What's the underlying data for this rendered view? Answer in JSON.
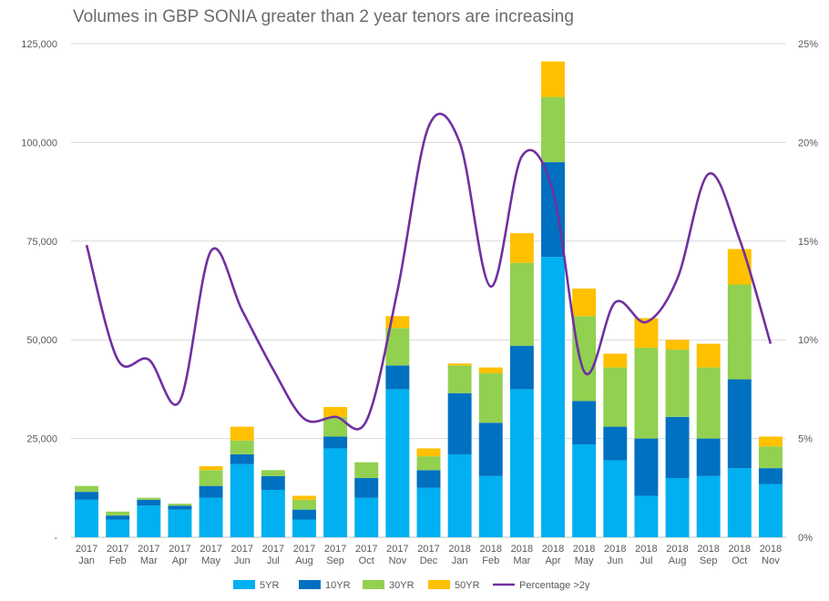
{
  "chart_data": {
    "type": "bar",
    "title": "Volumes in GBP SONIA greater than 2 year tenors are increasing",
    "categories": [
      [
        "2017",
        "Jan"
      ],
      [
        "2017",
        "Feb"
      ],
      [
        "2017",
        "Mar"
      ],
      [
        "2017",
        "Apr"
      ],
      [
        "2017",
        "May"
      ],
      [
        "2017",
        "Jun"
      ],
      [
        "2017",
        "Jul"
      ],
      [
        "2017",
        "Aug"
      ],
      [
        "2017",
        "Sep"
      ],
      [
        "2017",
        "Oct"
      ],
      [
        "2017",
        "Nov"
      ],
      [
        "2017",
        "Dec"
      ],
      [
        "2018",
        "Jan"
      ],
      [
        "2018",
        "Feb"
      ],
      [
        "2018",
        "Mar"
      ],
      [
        "2018",
        "Apr"
      ],
      [
        "2018",
        "May"
      ],
      [
        "2018",
        "Jun"
      ],
      [
        "2018",
        "Jul"
      ],
      [
        "2018",
        "Aug"
      ],
      [
        "2018",
        "Sep"
      ],
      [
        "2018",
        "Oct"
      ],
      [
        "2018",
        "Nov"
      ]
    ],
    "series": [
      {
        "name": "5YR",
        "color": "#00b0f0",
        "values": [
          9500,
          4500,
          8000,
          7000,
          10000,
          18500,
          12000,
          4500,
          22500,
          10000,
          37500,
          12500,
          21000,
          15500,
          37500,
          71000,
          23500,
          19500,
          10500,
          15000,
          15500,
          17500,
          13500
        ]
      },
      {
        "name": "10YR",
        "color": "#0070c0",
        "values": [
          2000,
          1000,
          1500,
          1000,
          3000,
          2500,
          3500,
          2500,
          3000,
          5000,
          6000,
          4500,
          15500,
          13500,
          11000,
          24000,
          11000,
          8500,
          14500,
          15500,
          9500,
          22500,
          4000
        ]
      },
      {
        "name": "30YR",
        "color": "#92d050",
        "values": [
          1500,
          1000,
          500,
          500,
          4000,
          3500,
          1500,
          2500,
          5000,
          4000,
          9500,
          3500,
          7000,
          12500,
          21000,
          16500,
          21500,
          15000,
          23000,
          17000,
          18000,
          24000,
          5500
        ]
      },
      {
        "name": "50YR",
        "color": "#ffc000",
        "values": [
          0,
          0,
          0,
          0,
          1000,
          3500,
          0,
          1000,
          2500,
          0,
          3000,
          2000,
          500,
          1500,
          7500,
          9000,
          7000,
          3500,
          7500,
          2500,
          6000,
          9000,
          2500
        ]
      }
    ],
    "line_series": {
      "name": "Percentage >2y",
      "color": "#7030a0",
      "axis": "right",
      "values": [
        14.8,
        9.0,
        9.0,
        6.9,
        14.5,
        11.5,
        8.5,
        6.0,
        6.1,
        5.9,
        12.5,
        20.8,
        20.0,
        12.7,
        19.3,
        17.5,
        8.4,
        11.9,
        10.9,
        13.1,
        18.4,
        15.1,
        9.8
      ]
    },
    "y_left": {
      "min": 0,
      "max": 125000,
      "tick_labels": [
        "-",
        "25,000",
        "50,000",
        "75,000",
        "100,000",
        "125,000"
      ]
    },
    "y_right": {
      "min": 0,
      "max": 25,
      "tick_labels": [
        "0%",
        "5%",
        "10%",
        "15%",
        "20%",
        "25%"
      ]
    },
    "grid": true,
    "legend_position": "bottom"
  }
}
